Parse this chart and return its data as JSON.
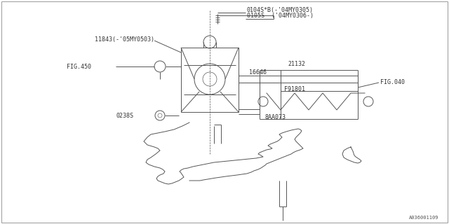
{
  "bg_color": "#ffffff",
  "border_color": "#aaaaaa",
  "line_color": "#555555",
  "text_color": "#333333",
  "figure_id": "A036001109",
  "labels": {
    "top_right_1": "0104S*B(-'04MY0305)",
    "top_right_2": "0105S  ('04MY0306-)",
    "part_11843": "11843(-'05MY0503)",
    "part_fig450": "FIG.450",
    "part_16646": "16646",
    "part_21132": "21132",
    "part_f91801": "F91801",
    "part_fig040": "FIG.040",
    "part_8aa073": "8AA073",
    "part_0238s": "0238S"
  },
  "font_size": 6.0
}
